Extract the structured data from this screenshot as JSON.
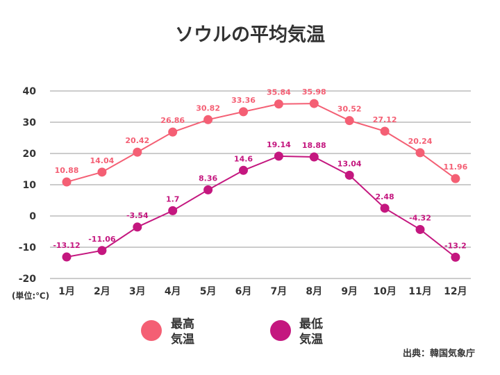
{
  "chart_data": {
    "type": "line",
    "title": "ソウルの平均気温",
    "categories": [
      "1月",
      "2月",
      "3月",
      "4月",
      "5月",
      "6月",
      "7月",
      "8月",
      "9月",
      "10月",
      "11月",
      "12月"
    ],
    "series": [
      {
        "name": "最高気温",
        "legend_lines": [
          "最高",
          "気温"
        ],
        "color": "#f45f74",
        "values": [
          10.88,
          14.04,
          20.42,
          26.86,
          30.82,
          33.36,
          35.84,
          35.98,
          30.52,
          27.12,
          20.24,
          11.96
        ],
        "labels": [
          "10.88",
          "14.04",
          "20.42",
          "26.86",
          "30.82",
          "33.36",
          "35.84",
          "35.98",
          "30.52",
          "27.12",
          "20.24",
          "11.96"
        ]
      },
      {
        "name": "最低気温",
        "legend_lines": [
          "最低",
          "気温"
        ],
        "color": "#c4177f",
        "values": [
          -13.12,
          -11.06,
          -3.54,
          1.7,
          8.36,
          14.6,
          19.14,
          18.88,
          13.04,
          2.48,
          -4.32,
          -13.2
        ],
        "labels": [
          "-13.12",
          "-11.06",
          "-3.54",
          "1.7",
          "8.36",
          "14.6",
          "19.14",
          "18.88",
          "13.04",
          "2.48",
          "-4.32",
          "-13.2"
        ]
      }
    ],
    "yticks": [
      40,
      30,
      20,
      10,
      0,
      -10,
      -20
    ],
    "ylim": [
      -20,
      40
    ],
    "unit_label": "(単位:℃)",
    "xlabel": "",
    "ylabel": "",
    "grid": true,
    "legend": "bottom"
  },
  "source": "出典：韓国気象庁"
}
